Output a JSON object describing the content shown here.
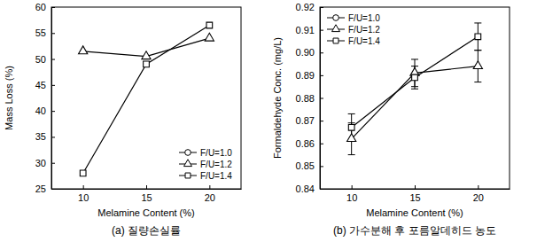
{
  "chart_data": [
    {
      "type": "line",
      "title": "(a) 질량손실률",
      "x_label": "Melamine Content (%)",
      "y_label": "Mass Loss (%)",
      "categories": [
        "10",
        "15",
        "20"
      ],
      "ylim": [
        25,
        60
      ],
      "yticks": [
        25,
        30,
        35,
        40,
        45,
        50,
        55,
        60
      ],
      "legend": "lower-right",
      "series": [
        {
          "name": "F/U=1.0",
          "color": "#000000",
          "marker": "circle",
          "values": [
            null,
            null,
            null
          ]
        },
        {
          "name": "F/U=1.2",
          "color": "#000000",
          "marker": "triangle",
          "values": [
            51.5,
            50.5,
            54.0
          ]
        },
        {
          "name": "F/U=1.4",
          "color": "#000000",
          "marker": "square",
          "values": [
            28.0,
            49.0,
            56.5
          ]
        }
      ]
    },
    {
      "type": "line",
      "title": "(b) 가수분해 후 포름알데히드 농도",
      "x_label": "Melamine Content (%)",
      "y_label": "Formaldehyde Conc. (mg/L)",
      "categories": [
        "10",
        "15",
        "20"
      ],
      "ylim": [
        0.84,
        0.92
      ],
      "yticks": [
        0.84,
        0.85,
        0.86,
        0.87,
        0.88,
        0.89,
        {
          "value": 0.9,
          "label": "0.90"
        },
        0.91,
        0.92
      ],
      "legend": "upper-left",
      "series": [
        {
          "name": "F/U=1.0",
          "color": "#000000",
          "marker": "circle",
          "values": [
            null,
            null,
            null
          ],
          "errors": [
            null,
            null,
            null
          ]
        },
        {
          "name": "F/U=1.2",
          "color": "#000000",
          "marker": "triangle",
          "values": [
            0.862,
            0.891,
            0.894
          ],
          "errors": [
            0.007,
            0.006,
            0.007
          ]
        },
        {
          "name": "F/U=1.4",
          "color": "#000000",
          "marker": "square",
          "values": [
            0.867,
            0.889,
            0.907
          ],
          "errors": [
            0.006,
            0.005,
            0.006
          ]
        }
      ]
    }
  ]
}
